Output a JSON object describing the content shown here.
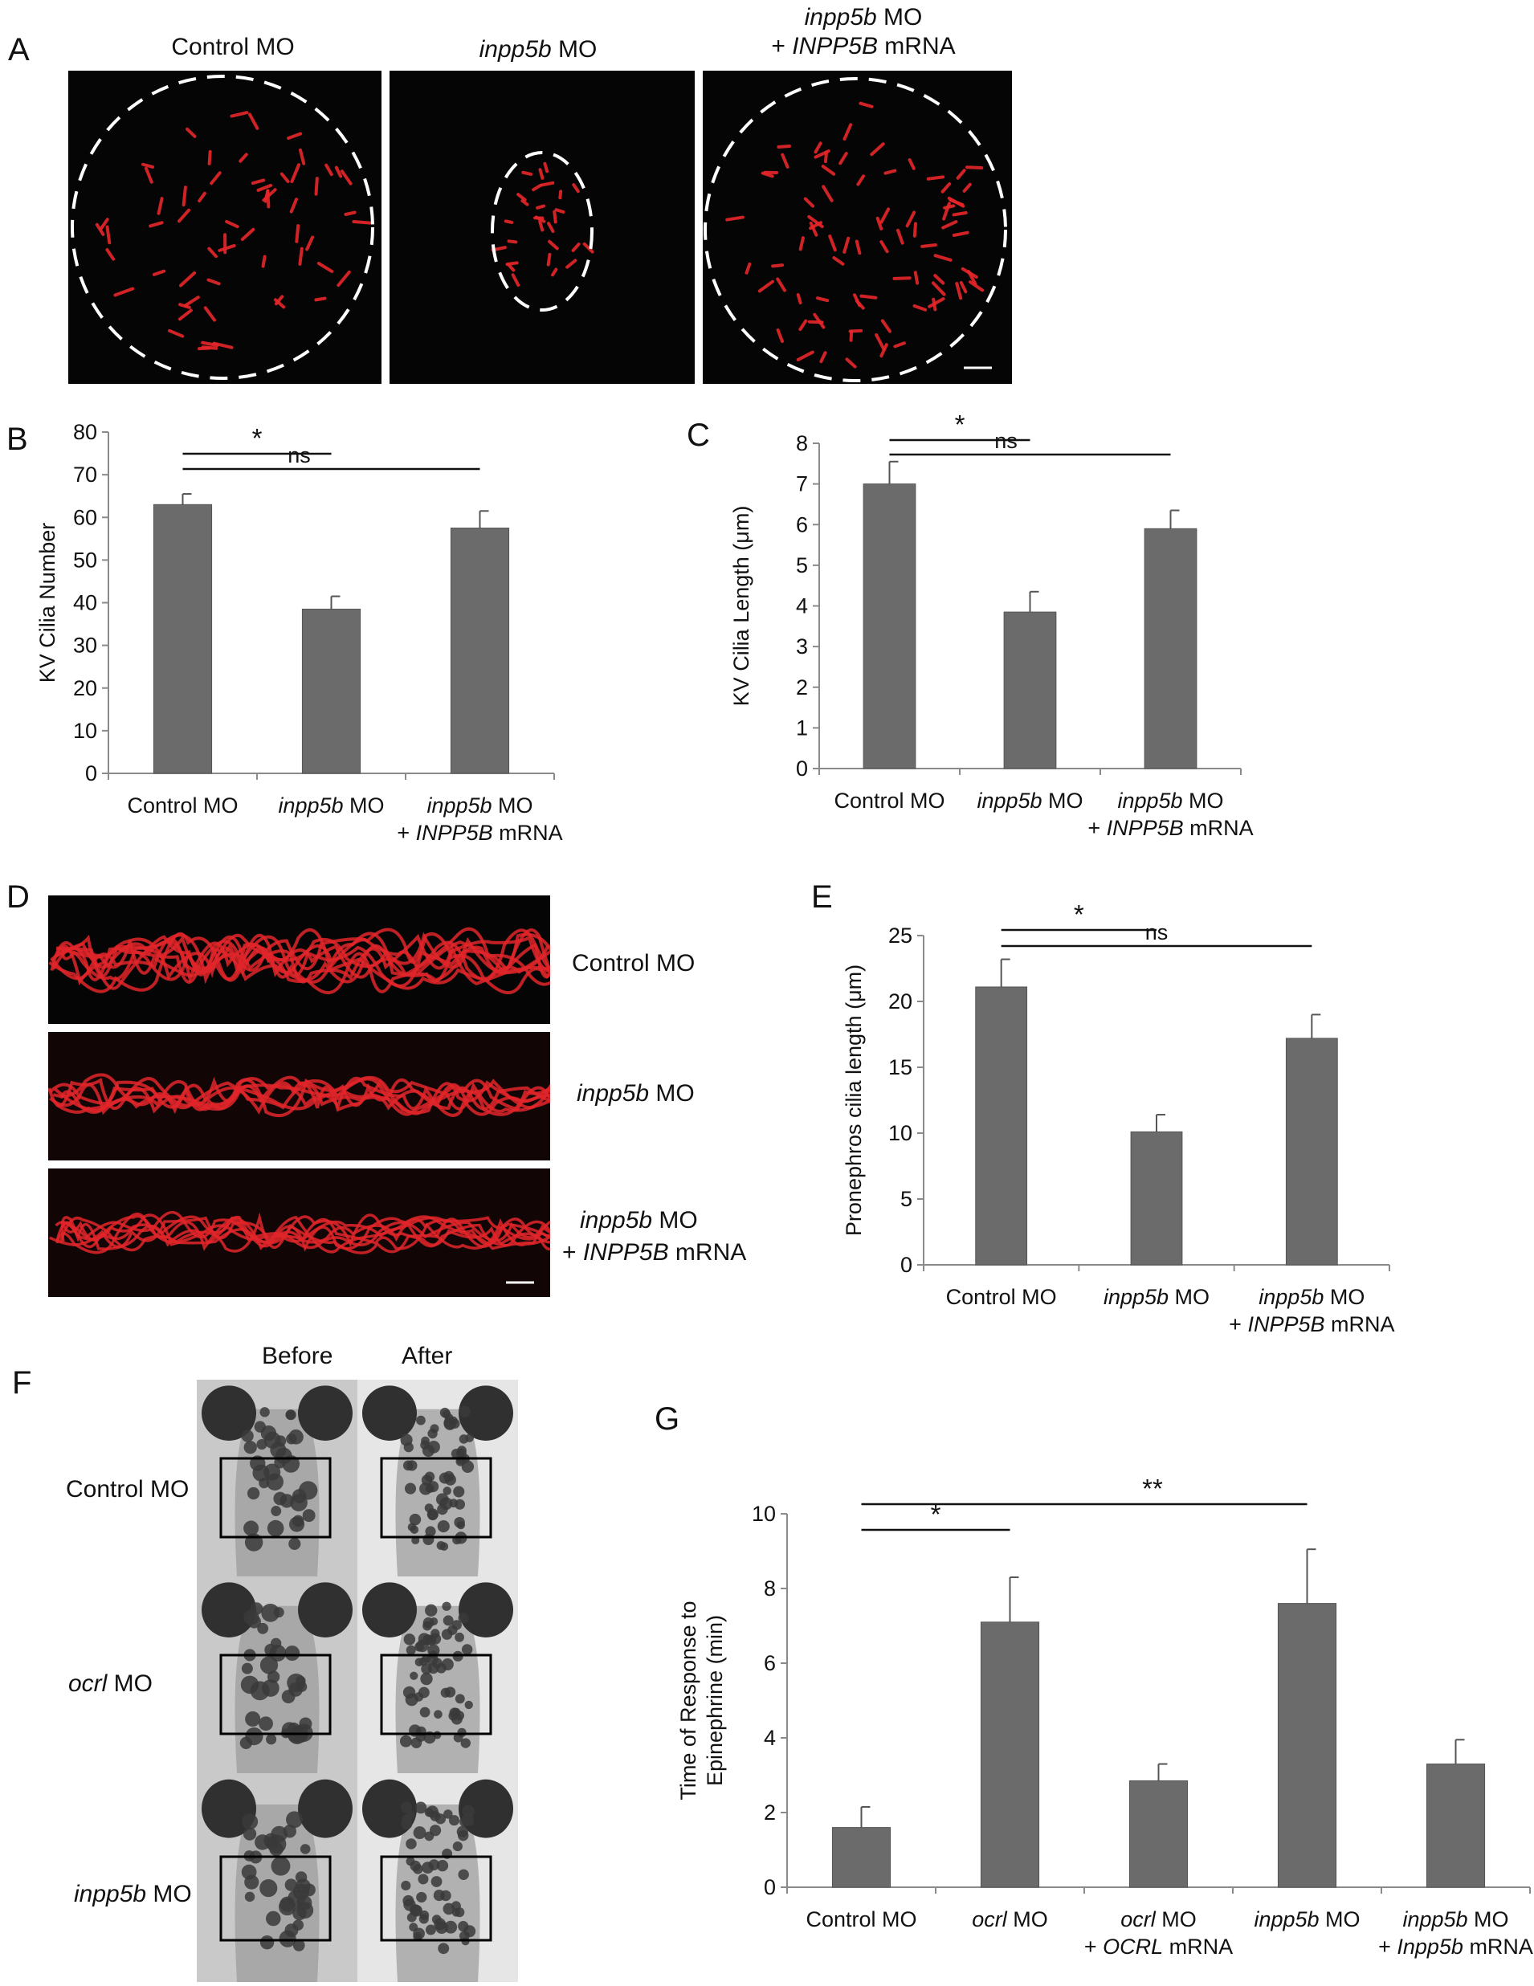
{
  "panel_letters": [
    "A",
    "B",
    "C",
    "D",
    "E",
    "F",
    "G"
  ],
  "panelA": {
    "labels": [
      {
        "pre_italic": "",
        "italic": "",
        "plain": "Control MO",
        "line2_italic": "",
        "line2_plain": ""
      },
      {
        "pre_italic": "",
        "italic": "inpp5b",
        "plain": " MO",
        "line2_italic": "",
        "line2_plain": ""
      },
      {
        "pre_italic": "",
        "italic": "inpp5b",
        "plain": " MO",
        "line2_italic": "INPP5B",
        "line2_plain": " mRNA"
      }
    ],
    "image_description_icons": [
      "cilia-fluorescence-image",
      "cilia-fluorescence-image",
      "cilia-fluorescence-image"
    ]
  },
  "panelD": {
    "labels": [
      {
        "italic": "",
        "plain": "Control MO",
        "line2_italic": "",
        "line2_plain": ""
      },
      {
        "italic": "inpp5b",
        "plain": " MO",
        "line2_italic": "",
        "line2_plain": ""
      },
      {
        "italic": "inpp5b",
        "plain": " MO",
        "line2_italic": "INPP5B",
        "line2_plain": " mRNA"
      }
    ]
  },
  "panelF": {
    "col_headers": [
      "Before",
      "After"
    ],
    "row_labels": [
      {
        "italic": "",
        "plain": "Control MO"
      },
      {
        "italic": "ocrl",
        "plain": " MO"
      },
      {
        "italic": "inpp5b",
        "plain": " MO"
      }
    ]
  },
  "chart_data": [
    {
      "id": "B",
      "type": "bar",
      "categories": [
        {
          "italic": "",
          "plain": "Control MO",
          "line2_italic": "",
          "line2_plain": ""
        },
        {
          "italic": "inpp5b",
          "plain": " MO",
          "line2_italic": "",
          "line2_plain": ""
        },
        {
          "italic": "inpp5b",
          "plain": " MO",
          "line2_italic": "INPP5B",
          "line2_plain": " mRNA"
        }
      ],
      "values": [
        63,
        38.5,
        57.5
      ],
      "errors": [
        2.5,
        3,
        4
      ],
      "ylabel": "KV Cilia Number",
      "ylim": [
        0,
        80
      ],
      "yticks": [
        0,
        10,
        20,
        30,
        40,
        50,
        60,
        70,
        80
      ],
      "significance": [
        {
          "from": 0,
          "to": 1,
          "label": "*"
        },
        {
          "from": 0,
          "to": 2,
          "label": "ns"
        }
      ],
      "bar_color": "#6b6b6b"
    },
    {
      "id": "C",
      "type": "bar",
      "categories": [
        {
          "italic": "",
          "plain": "Control MO",
          "line2_italic": "",
          "line2_plain": ""
        },
        {
          "italic": "inpp5b",
          "plain": " MO",
          "line2_italic": "",
          "line2_plain": ""
        },
        {
          "italic": "inpp5b",
          "plain": " MO",
          "line2_italic": "INPP5B",
          "line2_plain": " mRNA"
        }
      ],
      "values": [
        7.0,
        3.85,
        5.9
      ],
      "errors": [
        0.55,
        0.5,
        0.45
      ],
      "ylabel": "KV Cilia Length (μm)",
      "ylim": [
        0,
        8
      ],
      "yticks": [
        0,
        1,
        2,
        3,
        4,
        5,
        6,
        7,
        8
      ],
      "significance": [
        {
          "from": 0,
          "to": 1,
          "label": "*"
        },
        {
          "from": 0,
          "to": 2,
          "label": "ns"
        }
      ],
      "bar_color": "#6b6b6b"
    },
    {
      "id": "E",
      "type": "bar",
      "categories": [
        {
          "italic": "",
          "plain": "Control MO",
          "line2_italic": "",
          "line2_plain": ""
        },
        {
          "italic": "inpp5b",
          "plain": "   MO",
          "line2_italic": "",
          "line2_plain": ""
        },
        {
          "italic": "inpp5b",
          "plain": "   MO",
          "line2_italic": "INPP5B",
          "line2_plain": " mRNA"
        }
      ],
      "values": [
        21.1,
        10.1,
        17.2
      ],
      "errors": [
        2.1,
        1.3,
        1.8
      ],
      "ylabel": "Pronephros cilia length (μm)",
      "ylim": [
        0,
        25
      ],
      "yticks": [
        0,
        5,
        10,
        15,
        20,
        25
      ],
      "significance": [
        {
          "from": 0,
          "to": 1,
          "label": "*"
        },
        {
          "from": 0,
          "to": 2,
          "label": "ns"
        }
      ],
      "bar_color": "#6b6b6b"
    },
    {
      "id": "G",
      "type": "bar",
      "categories": [
        {
          "italic": "",
          "plain": "Control MO",
          "line2_italic": "",
          "line2_plain": ""
        },
        {
          "italic": "ocrl",
          "plain": " MO",
          "line2_italic": "",
          "line2_plain": ""
        },
        {
          "italic": "ocrl",
          "plain": " MO",
          "line2_italic": "OCRL",
          "line2_plain": " mRNA"
        },
        {
          "italic": "inpp5b",
          "plain": " MO",
          "line2_italic": "",
          "line2_plain": ""
        },
        {
          "italic": "inpp5b",
          "plain": " MO",
          "line2_italic": "Inpp5b",
          "line2_plain": " mRNA"
        }
      ],
      "values": [
        1.6,
        7.1,
        2.85,
        7.6,
        3.3
      ],
      "errors": [
        0.55,
        1.2,
        0.45,
        1.45,
        0.65
      ],
      "ylabel_lines": [
        "Time of Response to",
        "Epinephrine (min)"
      ],
      "ylim": [
        0,
        10
      ],
      "yticks": [
        0,
        2,
        4,
        6,
        8,
        10
      ],
      "significance": [
        {
          "from": 0,
          "to": 1,
          "label": "*"
        },
        {
          "from": 0,
          "to": 3,
          "label": "**"
        }
      ],
      "bar_color": "#6b6b6b"
    }
  ]
}
